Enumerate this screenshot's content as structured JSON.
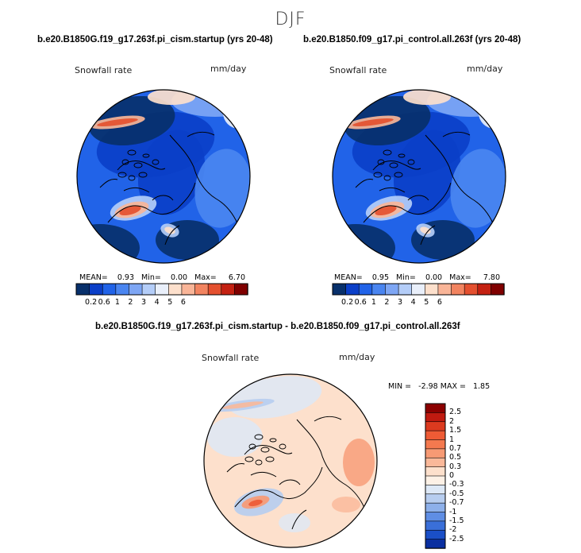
{
  "page": {
    "season": "DJF",
    "colors": {
      "coast": "#000000"
    }
  },
  "chart_data": [
    {
      "type": "heatmap",
      "projection": "north polar stereographic",
      "subtitle": "b.e20.B1850G.f19_g17.263f.pi_cism.startup (yrs 20-48)",
      "variable": "Snowfall rate",
      "units": "mm/day",
      "stats": {
        "mean": "0.93",
        "min": "0.00",
        "max": "6.70"
      },
      "stats_text": "MEAN=    0.93   Min=    0.00   Max=     6.70",
      "levels": [
        "0.2",
        "0.6",
        "1",
        "2",
        "3",
        "4",
        "5",
        "6"
      ],
      "palette": [
        "#08306b",
        "#0b3fc8",
        "#2163e8",
        "#4a85f0",
        "#7ea6f4",
        "#b4cdf8",
        "#e9effa",
        "#fde0cc",
        "#f9b598",
        "#f28460",
        "#e4502f",
        "#c42112",
        "#800000"
      ]
    },
    {
      "type": "heatmap",
      "projection": "north polar stereographic",
      "subtitle": "b.e20.B1850.f09_g17.pi_control.all.263f (yrs 20-48)",
      "variable": "Snowfall rate",
      "units": "mm/day",
      "stats": {
        "mean": "0.95",
        "min": "0.00",
        "max": "7.80"
      },
      "stats_text": "MEAN=    0.95   Min=    0.00   Max=     7.80",
      "levels": [
        "0.2",
        "0.6",
        "1",
        "2",
        "3",
        "4",
        "5",
        "6"
      ],
      "palette": [
        "#08306b",
        "#0b3fc8",
        "#2163e8",
        "#4a85f0",
        "#7ea6f4",
        "#b4cdf8",
        "#e9effa",
        "#fde0cc",
        "#f9b598",
        "#f28460",
        "#e4502f",
        "#c42112",
        "#800000"
      ]
    },
    {
      "type": "heatmap",
      "projection": "north polar stereographic",
      "subtitle": "b.e20.B1850G.f19_g17.263f.pi_cism.startup - b.e20.B1850.f09_g17.pi_control.all.263f",
      "variable": "Snowfall rate",
      "units": "mm/day",
      "stats": {
        "min": "-2.98",
        "max": "1.85"
      },
      "stats_text": "MIN =   -2.98 MAX =   1.85",
      "levels": [
        "2.5",
        "2",
        "1.5",
        "1",
        "0.7",
        "0.5",
        "0.3",
        "0",
        "-0.3",
        "-0.5",
        "-0.7",
        "-1",
        "-1.5",
        "-2",
        "-2.5"
      ],
      "palette": [
        "#8b0000",
        "#c01a10",
        "#dc3a1f",
        "#ee5b35",
        "#f4794f",
        "#f79a74",
        "#fab899",
        "#fde0cc",
        "#fdf1e6",
        "#dde8f6",
        "#b7cdef",
        "#8db0ea",
        "#5f8ee4",
        "#3a6fd9",
        "#1a4fc7",
        "#0a2fa0"
      ]
    }
  ]
}
